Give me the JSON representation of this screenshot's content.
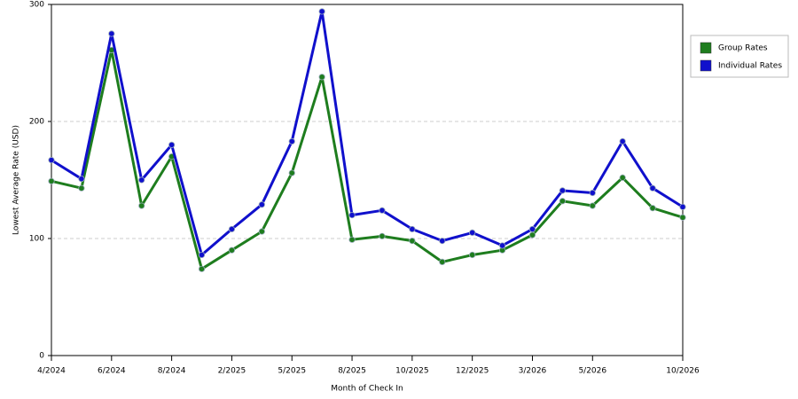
{
  "chart_data": {
    "type": "line",
    "x_label": "Month of Check In",
    "y_label": "Lowest Average Rate (USD)",
    "categories": [
      "4/2024",
      null,
      "6/2024",
      null,
      "8/2024",
      null,
      "2/2025",
      null,
      "5/2025",
      null,
      "8/2025",
      null,
      "10/2025",
      null,
      "12/2025",
      null,
      "3/2026",
      null,
      "5/2026",
      null,
      null,
      "10/2026"
    ],
    "series": [
      {
        "name": "Group Rates",
        "color": "#1e7d1e",
        "values": [
          149,
          143,
          261,
          128,
          170,
          74,
          90,
          106,
          156,
          238,
          99,
          102,
          98,
          80,
          86,
          90,
          103,
          132,
          128,
          152,
          126,
          118
        ]
      },
      {
        "name": "Individual Rates",
        "color": "#1010cc",
        "values": [
          167,
          151,
          275,
          150,
          180,
          86,
          108,
          129,
          183,
          294,
          120,
          124,
          108,
          98,
          105,
          94,
          108,
          141,
          139,
          183,
          143,
          127
        ]
      }
    ],
    "ylim": [
      0,
      300
    ],
    "yticks": [
      0,
      100,
      200,
      300
    ],
    "grid": true,
    "legend": "right"
  }
}
